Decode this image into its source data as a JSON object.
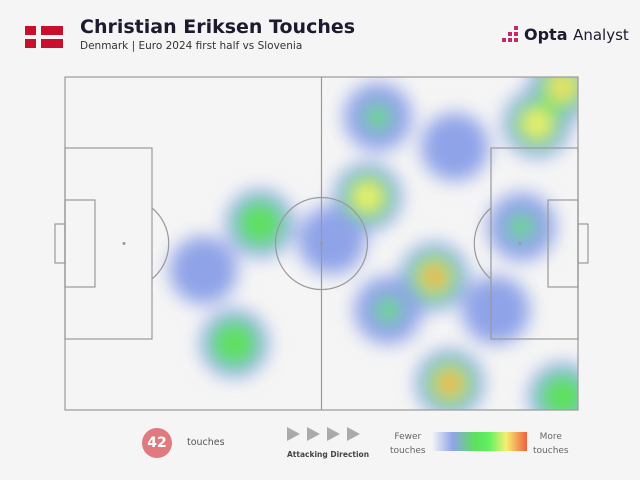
{
  "header": {
    "title": "Christian Eriksen Touches",
    "subtitle": "Denmark | Euro 2024 first half vs Slovenia",
    "logo": "Opta Analyst",
    "flag": "Denmark"
  },
  "chart_data": {
    "type": "heatmap",
    "title": "Christian Eriksen Touches",
    "attacking_direction": "left-to-right",
    "hotspots": [
      {
        "x": 75,
        "y": 92,
        "level": 4
      },
      {
        "x": 72,
        "y": 60,
        "level": 4
      },
      {
        "x": 59,
        "y": 36,
        "level": 3
      },
      {
        "x": 92,
        "y": 14,
        "level": 3
      },
      {
        "x": 97,
        "y": 3,
        "level": 3.5
      },
      {
        "x": 38,
        "y": 44,
        "level": 2
      },
      {
        "x": 33,
        "y": 80,
        "level": 2
      },
      {
        "x": 97,
        "y": 96,
        "level": 2
      },
      {
        "x": 61,
        "y": 12,
        "level": 1.5
      },
      {
        "x": 76,
        "y": 21,
        "level": 1
      },
      {
        "x": 89,
        "y": 45,
        "level": 1.5
      },
      {
        "x": 63,
        "y": 70,
        "level": 1.5
      },
      {
        "x": 84,
        "y": 70,
        "level": 1
      },
      {
        "x": 52,
        "y": 49,
        "level": 1
      },
      {
        "x": 27,
        "y": 58,
        "level": 1
      }
    ],
    "scale_colors": [
      "#8fa3e8",
      "#5ee05e",
      "#f5f070",
      "#f06040"
    ]
  },
  "legend": {
    "count": "42",
    "count_label": "touches",
    "direction_label": "Attacking Direction",
    "fewer": "Fewer touches",
    "more": "More touches",
    "fewer_l1": "Fewer",
    "fewer_l2": "touches",
    "more_l1": "More",
    "more_l2": "touches"
  }
}
